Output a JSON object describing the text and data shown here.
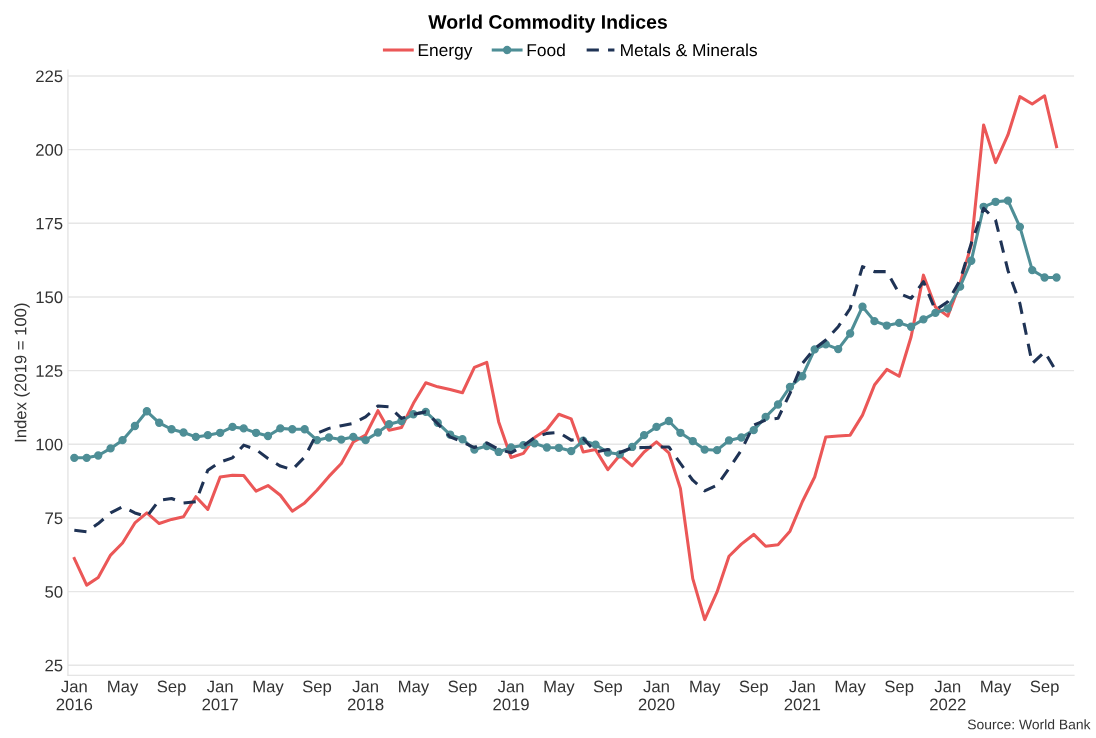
{
  "chart_data": {
    "type": "line",
    "title": "World Commodity Indices",
    "ylabel": "Index (2019 = 100)",
    "annotations": [
      "Source: World Bank"
    ],
    "x": [
      "2016-01",
      "2016-02",
      "2016-03",
      "2016-04",
      "2016-05",
      "2016-06",
      "2016-07",
      "2016-08",
      "2016-09",
      "2016-10",
      "2016-11",
      "2016-12",
      "2017-01",
      "2017-02",
      "2017-03",
      "2017-04",
      "2017-05",
      "2017-06",
      "2017-07",
      "2017-08",
      "2017-09",
      "2017-10",
      "2017-11",
      "2017-12",
      "2018-01",
      "2018-02",
      "2018-03",
      "2018-04",
      "2018-05",
      "2018-06",
      "2018-07",
      "2018-08",
      "2018-09",
      "2018-10",
      "2018-11",
      "2018-12",
      "2019-01",
      "2019-02",
      "2019-03",
      "2019-04",
      "2019-05",
      "2019-06",
      "2019-07",
      "2019-08",
      "2019-09",
      "2019-10",
      "2019-11",
      "2019-12",
      "2020-01",
      "2020-02",
      "2020-03",
      "2020-04",
      "2020-05",
      "2020-06",
      "2020-07",
      "2020-08",
      "2020-09",
      "2020-10",
      "2020-11",
      "2020-12",
      "2021-01",
      "2021-02",
      "2021-03",
      "2021-04",
      "2021-05",
      "2021-06",
      "2021-07",
      "2021-08",
      "2021-09",
      "2021-10",
      "2021-11",
      "2021-12",
      "2022-01",
      "2022-02",
      "2022-03",
      "2022-04",
      "2022-05",
      "2022-06",
      "2022-07",
      "2022-08",
      "2022-09",
      "2022-10"
    ],
    "series": [
      {
        "name": "Energy",
        "color": "#eb5757",
        "values": [
          61.2,
          52.2,
          54.8,
          62.4,
          66.5,
          73.3,
          76.7,
          73.1,
          74.5,
          75.4,
          82.2,
          77.9,
          88.9,
          89.5,
          89.4,
          84.1,
          86.0,
          82.7,
          77.3,
          80.1,
          84.4,
          89.1,
          93.5,
          100.8,
          103.1,
          111.4,
          104.8,
          105.7,
          113.9,
          120.9,
          119.5,
          118.6,
          117.5,
          126.1,
          127.8,
          107.6,
          95.5,
          96.9,
          102.3,
          105.0,
          110.2,
          108.6,
          97.4,
          98.2,
          91.4,
          96.3,
          92.7,
          97.4,
          100.8,
          97.1,
          85.0,
          54.4,
          40.5,
          49.9,
          62.0,
          66.1,
          69.4,
          65.4,
          65.9,
          70.5,
          80.5,
          88.9,
          102.5,
          102.8,
          103.1,
          109.9,
          120.1,
          125.4,
          123.1,
          136.5,
          157.4,
          146.6,
          143.5,
          154.7,
          167.6,
          208.4,
          195.6,
          205.0,
          218.0,
          215.5,
          218.3,
          201.0
        ]
      },
      {
        "name": "Food",
        "color": "#4e8e96",
        "marker": "circle",
        "values": [
          95.4,
          95.4,
          96.2,
          98.6,
          101.4,
          106.2,
          111.2,
          107.3,
          105.1,
          104.0,
          102.5,
          103.1,
          103.9,
          105.9,
          105.4,
          103.9,
          102.8,
          105.4,
          105.1,
          105.1,
          101.4,
          102.3,
          101.6,
          102.5,
          101.4,
          104.0,
          106.8,
          107.9,
          110.2,
          111.0,
          107.3,
          103.3,
          101.7,
          98.2,
          99.4,
          97.4,
          98.9,
          99.7,
          100.3,
          98.9,
          98.8,
          97.7,
          101.2,
          99.9,
          97.2,
          96.6,
          99.1,
          103.1,
          105.9,
          107.9,
          103.9,
          101.1,
          98.2,
          98.0,
          101.3,
          102.3,
          104.8,
          109.3,
          113.5,
          119.5,
          123.1,
          132.2,
          133.9,
          132.3,
          137.6,
          146.7,
          141.8,
          140.3,
          141.2,
          139.9,
          142.4,
          144.6,
          146.1,
          153.5,
          162.3,
          180.6,
          182.3,
          182.7,
          173.8,
          159.1,
          156.6,
          156.6
        ]
      },
      {
        "name": "Metals & Minerals",
        "color": "#1f3355",
        "line_style": "dashed",
        "values": [
          70.8,
          70.3,
          73.1,
          76.7,
          78.8,
          76.7,
          75.5,
          81.0,
          81.6,
          80.1,
          80.5,
          91.2,
          94.0,
          95.4,
          99.7,
          98.2,
          95.2,
          92.6,
          91.4,
          95.7,
          103.7,
          105.4,
          106.3,
          107.1,
          109.3,
          113.0,
          112.7,
          108.8,
          110.2,
          111.0,
          107.0,
          102.5,
          100.8,
          98.9,
          100.5,
          98.3,
          97.1,
          99.5,
          102.3,
          103.7,
          104.0,
          101.4,
          102.0,
          97.4,
          98.2,
          97.2,
          98.8,
          98.9,
          99.1,
          99.1,
          93.5,
          87.8,
          84.2,
          86.1,
          91.8,
          98.0,
          106.5,
          108.2,
          108.8,
          117.3,
          127.4,
          132.5,
          135.4,
          139.9,
          146.1,
          160.3,
          158.6,
          158.6,
          151.2,
          149.5,
          155.2,
          145.5,
          148.4,
          155.7,
          168.2,
          180.1,
          176.1,
          159.0,
          147.8,
          127.4,
          131.4,
          124.6
        ]
      }
    ],
    "xlim": [
      "2015-12-16",
      "2022-11-14"
    ],
    "xticks": [
      {
        "value": "2016-01",
        "label": "Jan\n2016"
      },
      {
        "value": "2016-05",
        "label": "May"
      },
      {
        "value": "2016-09",
        "label": "Sep"
      },
      {
        "value": "2017-01",
        "label": "Jan\n2017"
      },
      {
        "value": "2017-05",
        "label": "May"
      },
      {
        "value": "2017-09",
        "label": "Sep"
      },
      {
        "value": "2018-01",
        "label": "Jan\n2018"
      },
      {
        "value": "2018-05",
        "label": "May"
      },
      {
        "value": "2018-09",
        "label": "Sep"
      },
      {
        "value": "2019-01",
        "label": "Jan\n2019"
      },
      {
        "value": "2019-05",
        "label": "May"
      },
      {
        "value": "2019-09",
        "label": "Sep"
      },
      {
        "value": "2020-01",
        "label": "Jan\n2020"
      },
      {
        "value": "2020-05",
        "label": "May"
      },
      {
        "value": "2020-09",
        "label": "Sep"
      },
      {
        "value": "2021-01",
        "label": "Jan\n2021"
      },
      {
        "value": "2021-05",
        "label": "May"
      },
      {
        "value": "2021-09",
        "label": "Sep"
      },
      {
        "value": "2022-01",
        "label": "Jan\n2022"
      },
      {
        "value": "2022-05",
        "label": "May"
      },
      {
        "value": "2022-09",
        "label": "Sep"
      }
    ],
    "ylim": [
      21.6,
      227
    ],
    "yticks": [
      25,
      50,
      75,
      100,
      125,
      150,
      175,
      200,
      225
    ],
    "grid": "y",
    "legend": "top"
  }
}
